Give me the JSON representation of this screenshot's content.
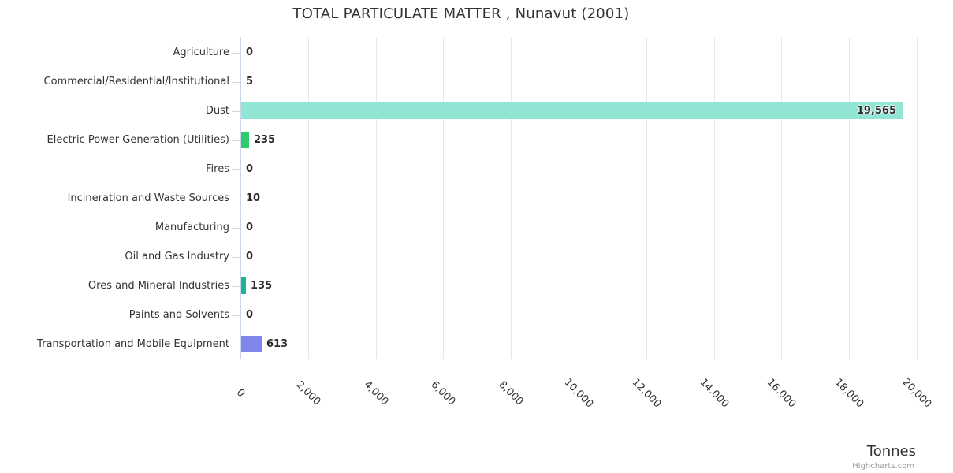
{
  "credits": "Highcharts.com",
  "style": {
    "grid_color": "#e6e6e6",
    "axis_color": "#ccd6eb",
    "text_color": "#333333",
    "value_label_color": "#2b2b2b",
    "background": "#ffffff"
  },
  "chart_data": {
    "type": "bar",
    "orientation": "horizontal",
    "title": "TOTAL PARTICULATE MATTER , Nunavut (2001)",
    "categories": [
      "Agriculture",
      "Commercial/Residential/Institutional",
      "Dust",
      "Electric Power Generation (Utilities)",
      "Fires",
      "Incineration and Waste Sources",
      "Manufacturing",
      "Oil and Gas Industry",
      "Ores and Mineral Industries",
      "Paints and Solvents",
      "Transportation and Mobile Equipment"
    ],
    "values": [
      0,
      5,
      19565,
      235,
      0,
      10,
      0,
      0,
      135,
      0,
      613
    ],
    "value_labels": [
      "0",
      "5",
      "19,565",
      "235",
      "0",
      "10",
      "0",
      "0",
      "135",
      "0",
      "613"
    ],
    "bar_colors": [
      null,
      null,
      "#90e5d4",
      "#2ecc71",
      null,
      null,
      null,
      null,
      "#1cb394",
      null,
      "#8085e9"
    ],
    "xlabel": "Tonnes",
    "xlim": [
      0,
      20000
    ],
    "xticks": [
      0,
      2000,
      4000,
      6000,
      8000,
      10000,
      12000,
      14000,
      16000,
      18000,
      20000
    ],
    "xtick_labels": [
      "0",
      "2,000",
      "4,000",
      "6,000",
      "8,000",
      "10,000",
      "12,000",
      "14,000",
      "16,000",
      "18,000",
      "20,000"
    ],
    "grid": true,
    "legend": false
  }
}
